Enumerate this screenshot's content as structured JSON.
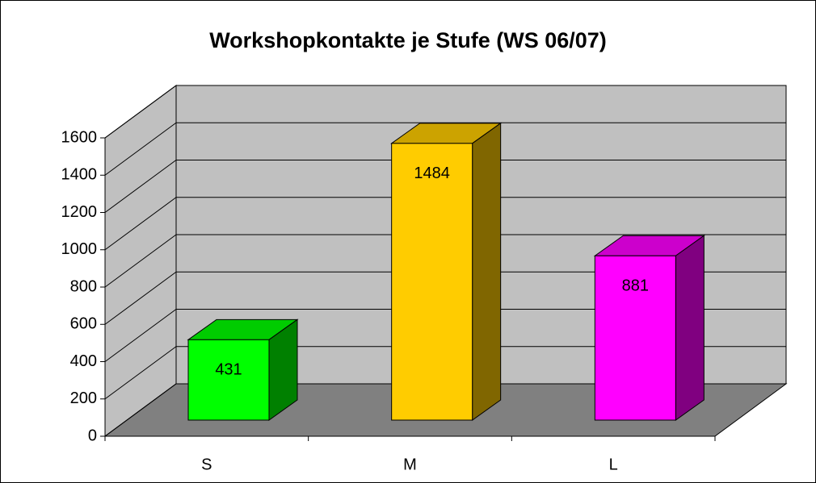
{
  "chart_data": {
    "type": "bar3d",
    "title": "Workshopkontakte je Stufe (WS 06/07)",
    "categories": [
      "S",
      "M",
      "L"
    ],
    "values": [
      431,
      1484,
      881
    ],
    "colors": [
      "#00ff00",
      "#ffcc00",
      "#ff00ff"
    ],
    "ylim": [
      0,
      1600
    ],
    "yticks": [
      0,
      200,
      400,
      600,
      800,
      1000,
      1200,
      1400,
      1600
    ],
    "grid": true
  }
}
